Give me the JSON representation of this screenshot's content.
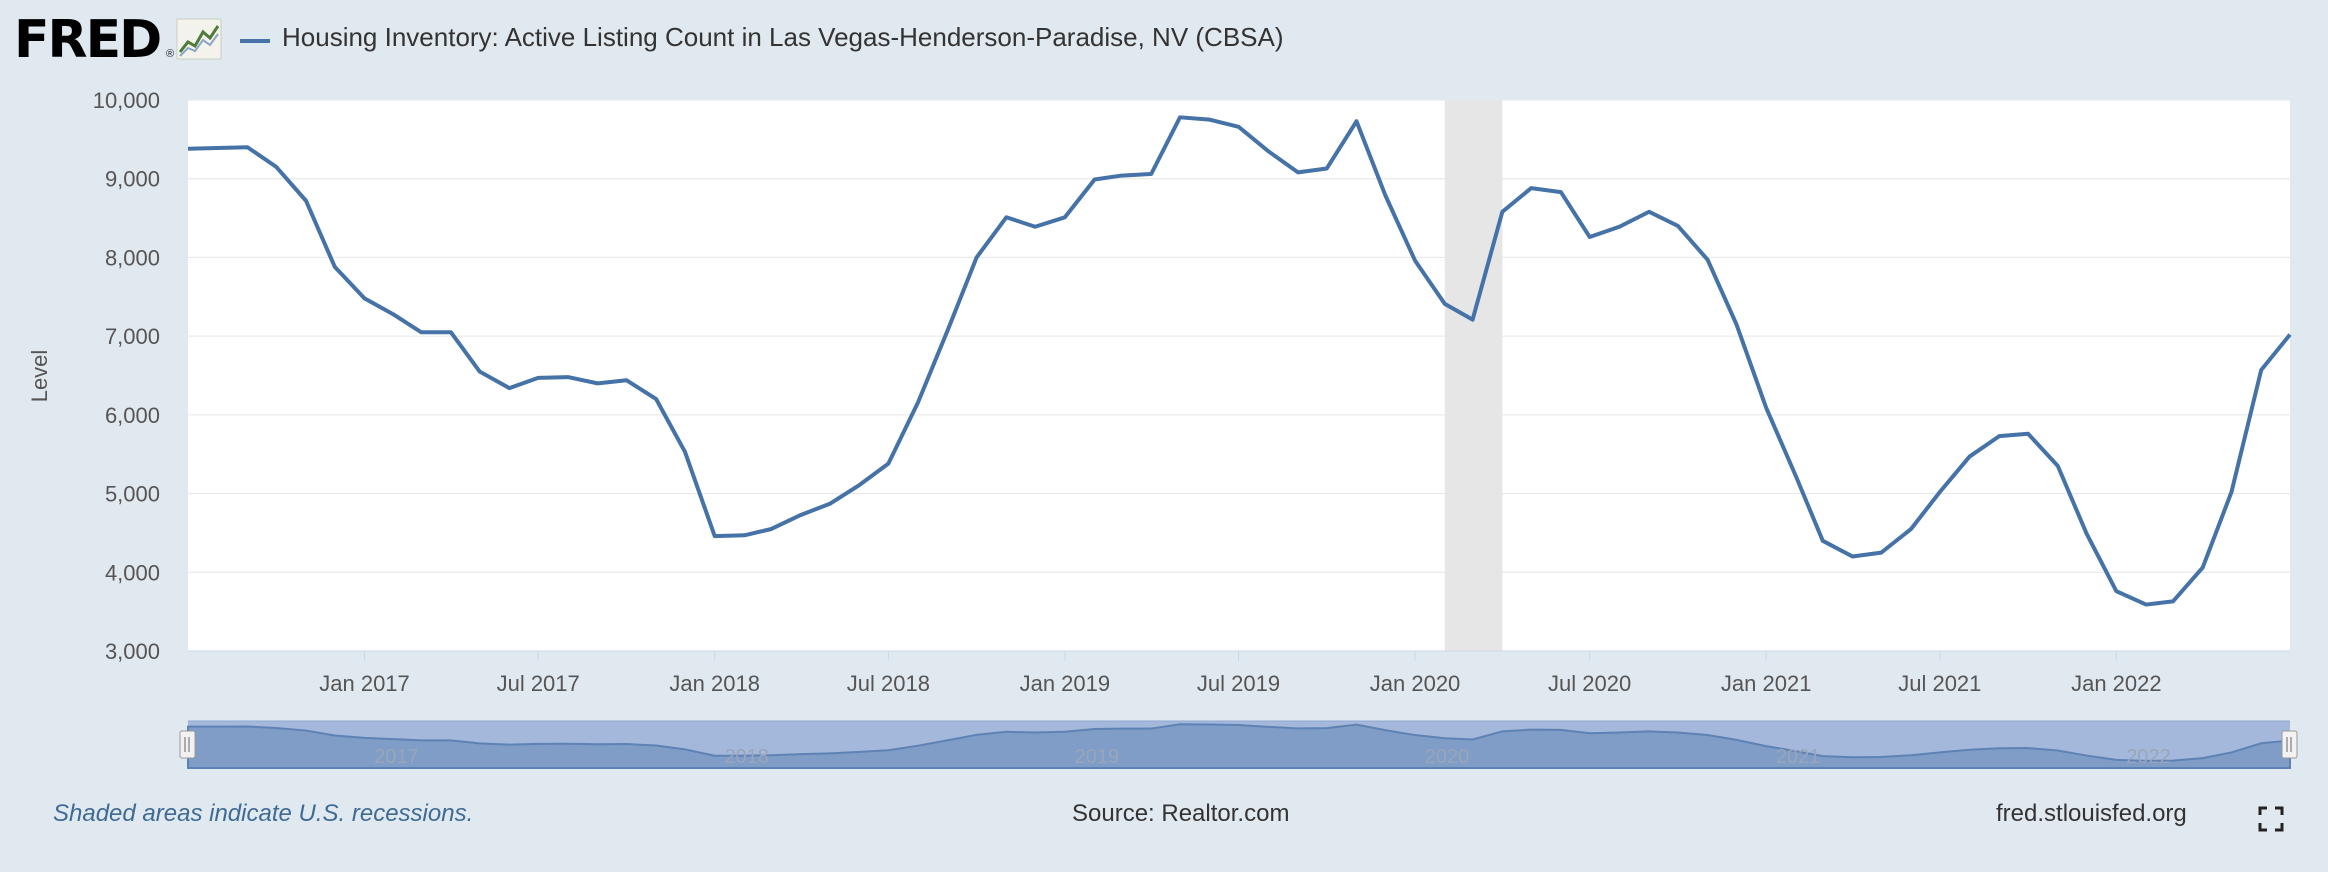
{
  "header": {
    "logo_text": "FRED",
    "logo_registered": "®",
    "title": "Housing Inventory: Active Listing Count in Las Vegas-Henderson-Paradise, NV (CBSA)"
  },
  "footer": {
    "recession_note": "Shaded areas indicate U.S. recessions.",
    "source": "Source: Realtor.com",
    "url": "fred.stlouisfed.org"
  },
  "icons": {
    "logo_graph": "fred-graph-icon",
    "fullscreen": "fullscreen-icon"
  },
  "colors": {
    "series": "#4572a7",
    "recession": "#e6e6e6",
    "navigator_mask": "#a3b8db",
    "navigator_area": "#7f9dc6"
  },
  "chart_data": {
    "type": "line",
    "title": "Housing Inventory: Active Listing Count in Las Vegas-Henderson-Paradise, NV (CBSA)",
    "xlabel": "",
    "ylabel": "Level",
    "ylim": [
      3000,
      10000
    ],
    "xlim": [
      "2016-07-01",
      "2022-07-01"
    ],
    "y_ticks": [
      "3,000",
      "4,000",
      "5,000",
      "6,000",
      "7,000",
      "8,000",
      "9,000",
      "10,000"
    ],
    "x_ticks": [
      {
        "date": "2017-01-01",
        "label": "Jan 2017"
      },
      {
        "date": "2017-07-01",
        "label": "Jul 2017"
      },
      {
        "date": "2018-01-01",
        "label": "Jan 2018"
      },
      {
        "date": "2018-07-01",
        "label": "Jul 2018"
      },
      {
        "date": "2019-01-01",
        "label": "Jan 2019"
      },
      {
        "date": "2019-07-01",
        "label": "Jul 2019"
      },
      {
        "date": "2020-01-01",
        "label": "Jan 2020"
      },
      {
        "date": "2020-07-01",
        "label": "Jul 2020"
      },
      {
        "date": "2021-01-01",
        "label": "Jan 2021"
      },
      {
        "date": "2021-07-01",
        "label": "Jul 2021"
      },
      {
        "date": "2022-01-01",
        "label": "Jan 2022"
      }
    ],
    "navigator_labels": [
      {
        "date": "2017-01-01",
        "label": "2017"
      },
      {
        "date": "2018-01-01",
        "label": "2018"
      },
      {
        "date": "2019-01-01",
        "label": "2019"
      },
      {
        "date": "2020-01-01",
        "label": "2020"
      },
      {
        "date": "2021-01-01",
        "label": "2021"
      },
      {
        "date": "2022-01-01",
        "label": "2022"
      }
    ],
    "recessions": [
      {
        "start": "2020-02-01",
        "end": "2020-04-01"
      }
    ],
    "grid": true,
    "legend": "top-left",
    "series": [
      {
        "name": "Housing Inventory: Active Listing Count in Las Vegas-Henderson-Paradise, NV (CBSA)",
        "x": [
          "2016-07-01",
          "2016-08-01",
          "2016-09-01",
          "2016-10-01",
          "2016-11-01",
          "2016-12-01",
          "2017-01-01",
          "2017-02-01",
          "2017-03-01",
          "2017-04-01",
          "2017-05-01",
          "2017-06-01",
          "2017-07-01",
          "2017-08-01",
          "2017-09-01",
          "2017-10-01",
          "2017-11-01",
          "2017-12-01",
          "2018-01-01",
          "2018-02-01",
          "2018-03-01",
          "2018-04-01",
          "2018-05-01",
          "2018-06-01",
          "2018-07-01",
          "2018-08-01",
          "2018-09-01",
          "2018-10-01",
          "2018-11-01",
          "2018-12-01",
          "2019-01-01",
          "2019-02-01",
          "2019-03-01",
          "2019-04-01",
          "2019-05-01",
          "2019-06-01",
          "2019-07-01",
          "2019-08-01",
          "2019-09-01",
          "2019-10-01",
          "2019-11-01",
          "2019-12-01",
          "2020-01-01",
          "2020-02-01",
          "2020-03-01",
          "2020-04-01",
          "2020-05-01",
          "2020-06-01",
          "2020-07-01",
          "2020-08-01",
          "2020-09-01",
          "2020-10-01",
          "2020-11-01",
          "2020-12-01",
          "2021-01-01",
          "2021-02-01",
          "2021-03-01",
          "2021-04-01",
          "2021-05-01",
          "2021-06-01",
          "2021-07-01",
          "2021-08-01",
          "2021-09-01",
          "2021-10-01",
          "2021-11-01",
          "2021-12-01",
          "2022-01-01",
          "2022-02-01",
          "2022-03-01",
          "2022-04-01",
          "2022-05-01",
          "2022-06-01",
          "2022-07-01"
        ],
        "values": [
          9380,
          9390,
          9400,
          9150,
          8720,
          7880,
          7480,
          7270,
          7050,
          7050,
          6550,
          6340,
          6470,
          6480,
          6400,
          6440,
          6200,
          5530,
          4460,
          4470,
          4550,
          4730,
          4870,
          5110,
          5380,
          6160,
          7080,
          8000,
          8510,
          8390,
          8510,
          8990,
          9040,
          9060,
          9780,
          9750,
          9660,
          9350,
          9080,
          9130,
          9730,
          8790,
          7960,
          7410,
          7210,
          8580,
          8880,
          8830,
          8260,
          8390,
          8580,
          8400,
          7970,
          7150,
          6090,
          5220,
          4400,
          4200,
          4250,
          4550,
          5020,
          5470,
          5730,
          5760,
          5350,
          4490,
          3760,
          3590,
          3630,
          4060,
          5020,
          6570,
          7020
        ]
      }
    ]
  }
}
